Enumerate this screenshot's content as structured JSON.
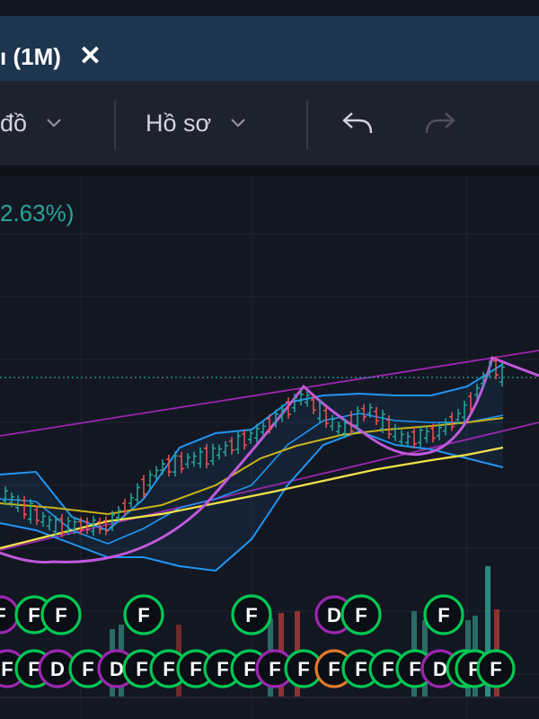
{
  "tab": {
    "title": "ı (1M)",
    "close_icon": "close-icon"
  },
  "toolbar": {
    "chart_menu_label": "đồ",
    "profile_menu_label": "Hồ sơ",
    "undo_icon": "undo-icon",
    "redo_icon": "redo-icon"
  },
  "chart": {
    "change_percent": "2.63%)",
    "event_marker_f": "F",
    "event_marker_d": "D",
    "colors": {
      "up": "#26a69a",
      "down": "#ef5350",
      "bollinger": "#2196f3",
      "channel": "#9c27b0",
      "ma_short": "#c9b21a",
      "ma_long": "#f0e04a",
      "event_green": "#00c853"
    }
  }
}
